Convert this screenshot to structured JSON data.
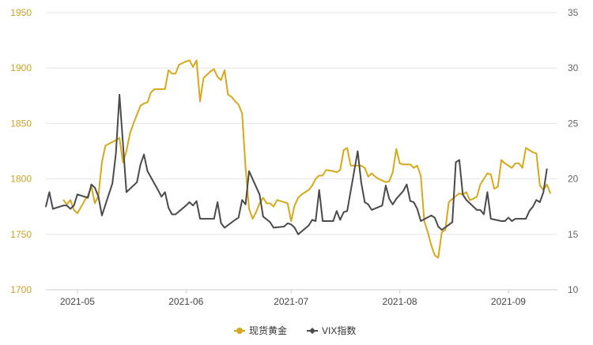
{
  "chart_data": {
    "type": "line",
    "x_type": "date",
    "x_range": [
      "2021-04-22",
      "2021-09-15"
    ],
    "x_ticks": [
      {
        "date": "2021-05-01",
        "label": "2021-05"
      },
      {
        "date": "2021-06-01",
        "label": "2021-06"
      },
      {
        "date": "2021-07-01",
        "label": "2021-07"
      },
      {
        "date": "2021-08-01",
        "label": "2021-08"
      },
      {
        "date": "2021-09-01",
        "label": "2021-09"
      }
    ],
    "y_left": {
      "min": 1700,
      "max": 1950,
      "ticks": [
        "1700",
        "1750",
        "1800",
        "1850",
        "1900",
        "1950"
      ]
    },
    "y_right": {
      "min": 10,
      "max": 35,
      "ticks": [
        "10",
        "15",
        "20",
        "25",
        "30",
        "35"
      ]
    },
    "grid": true,
    "legend_position": "bottom",
    "series": [
      {
        "name": "现货黄金",
        "axis": "left",
        "color": "#d4a91c",
        "marker": "circle",
        "points": [
          [
            "2021-04-27",
            1781
          ],
          [
            "2021-04-28",
            1777
          ],
          [
            "2021-04-29",
            1781
          ],
          [
            "2021-04-30",
            1772
          ],
          [
            "2021-05-01",
            1769
          ],
          [
            "2021-05-03",
            1780
          ],
          [
            "2021-05-04",
            1785
          ],
          [
            "2021-05-05",
            1793
          ],
          [
            "2021-05-06",
            1778
          ],
          [
            "2021-05-07",
            1785
          ],
          [
            "2021-05-08",
            1815
          ],
          [
            "2021-05-09",
            1830
          ],
          [
            "2021-05-12",
            1835
          ],
          [
            "2021-05-13",
            1837
          ],
          [
            "2021-05-14",
            1815
          ],
          [
            "2021-05-15",
            1825
          ],
          [
            "2021-05-16",
            1841
          ],
          [
            "2021-05-17",
            1850
          ],
          [
            "2021-05-19",
            1866
          ],
          [
            "2021-05-20",
            1868
          ],
          [
            "2021-05-21",
            1869
          ],
          [
            "2021-05-22",
            1878
          ],
          [
            "2021-05-23",
            1881
          ],
          [
            "2021-05-24",
            1881
          ],
          [
            "2021-05-26",
            1881
          ],
          [
            "2021-05-27",
            1898
          ],
          [
            "2021-05-28",
            1895
          ],
          [
            "2021-05-29",
            1895
          ],
          [
            "2021-05-30",
            1903
          ],
          [
            "2021-06-01",
            1906
          ],
          [
            "2021-06-02",
            1907
          ],
          [
            "2021-06-03",
            1901
          ],
          [
            "2021-06-04",
            1907
          ],
          [
            "2021-06-05",
            1870
          ],
          [
            "2021-06-06",
            1891
          ],
          [
            "2021-06-07",
            1894
          ],
          [
            "2021-06-08",
            1897
          ],
          [
            "2021-06-09",
            1899
          ],
          [
            "2021-06-10",
            1892
          ],
          [
            "2021-06-11",
            1889
          ],
          [
            "2021-06-12",
            1898
          ],
          [
            "2021-06-13",
            1876
          ],
          [
            "2021-06-14",
            1874
          ],
          [
            "2021-06-15",
            1870
          ],
          [
            "2021-06-16",
            1867
          ],
          [
            "2021-06-17",
            1859
          ],
          [
            "2021-06-18",
            1810
          ],
          [
            "2021-06-19",
            1773
          ],
          [
            "2021-06-20",
            1764
          ],
          [
            "2021-06-21",
            1770
          ],
          [
            "2021-06-22",
            1778
          ],
          [
            "2021-06-23",
            1783
          ],
          [
            "2021-06-24",
            1778
          ],
          [
            "2021-06-25",
            1778
          ],
          [
            "2021-06-26",
            1775
          ],
          [
            "2021-06-27",
            1781
          ],
          [
            "2021-06-29",
            1779
          ],
          [
            "2021-06-30",
            1778
          ],
          [
            "2021-07-01",
            1762
          ],
          [
            "2021-07-02",
            1776
          ],
          [
            "2021-07-03",
            1783
          ],
          [
            "2021-07-04",
            1786
          ],
          [
            "2021-07-06",
            1790
          ],
          [
            "2021-07-07",
            1794
          ],
          [
            "2021-07-08",
            1800
          ],
          [
            "2021-07-09",
            1803
          ],
          [
            "2021-07-10",
            1803
          ],
          [
            "2021-07-11",
            1808
          ],
          [
            "2021-07-13",
            1807
          ],
          [
            "2021-07-14",
            1806
          ],
          [
            "2021-07-15",
            1808
          ],
          [
            "2021-07-16",
            1826
          ],
          [
            "2021-07-17",
            1828
          ],
          [
            "2021-07-18",
            1812
          ],
          [
            "2021-07-20",
            1812
          ],
          [
            "2021-07-21",
            1812
          ],
          [
            "2021-07-22",
            1810
          ],
          [
            "2021-07-23",
            1802
          ],
          [
            "2021-07-24",
            1805
          ],
          [
            "2021-07-25",
            1802
          ],
          [
            "2021-07-26",
            1800
          ],
          [
            "2021-07-28",
            1797
          ],
          [
            "2021-07-29",
            1798
          ],
          [
            "2021-07-30",
            1806
          ],
          [
            "2021-07-31",
            1827
          ],
          [
            "2021-08-01",
            1814
          ],
          [
            "2021-08-02",
            1813
          ],
          [
            "2021-08-04",
            1813
          ],
          [
            "2021-08-05",
            1810
          ],
          [
            "2021-08-06",
            1812
          ],
          [
            "2021-08-07",
            1803
          ],
          [
            "2021-08-08",
            1762
          ],
          [
            "2021-08-09",
            1752
          ],
          [
            "2021-08-10",
            1740
          ],
          [
            "2021-08-11",
            1731
          ],
          [
            "2021-08-12",
            1729
          ],
          [
            "2021-08-13",
            1752
          ],
          [
            "2021-08-14",
            1754
          ],
          [
            "2021-08-15",
            1779
          ],
          [
            "2021-08-16",
            1782
          ],
          [
            "2021-08-18",
            1787
          ],
          [
            "2021-08-19",
            1786
          ],
          [
            "2021-08-20",
            1788
          ],
          [
            "2021-08-21",
            1781
          ],
          [
            "2021-08-22",
            1782
          ],
          [
            "2021-08-23",
            1784
          ],
          [
            "2021-08-24",
            1795
          ],
          [
            "2021-08-25",
            1800
          ],
          [
            "2021-08-26",
            1805
          ],
          [
            "2021-08-27",
            1804
          ],
          [
            "2021-08-28",
            1791
          ],
          [
            "2021-08-29",
            1793
          ],
          [
            "2021-08-30",
            1817
          ],
          [
            "2021-08-31",
            1814
          ],
          [
            "2021-09-02",
            1810
          ],
          [
            "2021-09-03",
            1814
          ],
          [
            "2021-09-04",
            1814
          ],
          [
            "2021-09-05",
            1810
          ],
          [
            "2021-09-06",
            1828
          ],
          [
            "2021-09-07",
            1826
          ],
          [
            "2021-09-08",
            1824
          ],
          [
            "2021-09-09",
            1823
          ],
          [
            "2021-09-10",
            1794
          ],
          [
            "2021-09-11",
            1790
          ],
          [
            "2021-09-12",
            1795
          ],
          [
            "2021-09-13",
            1787
          ]
        ]
      },
      {
        "name": "VIX指数",
        "axis": "right",
        "color": "#4a4a4a",
        "marker": "diamond",
        "points": [
          [
            "2021-04-22",
            17.5
          ],
          [
            "2021-04-23",
            18.8
          ],
          [
            "2021-04-24",
            17.3
          ],
          [
            "2021-04-27",
            17.6
          ],
          [
            "2021-04-28",
            17.6
          ],
          [
            "2021-04-29",
            17.3
          ],
          [
            "2021-04-30",
            17.6
          ],
          [
            "2021-05-01",
            18.6
          ],
          [
            "2021-05-03",
            18.4
          ],
          [
            "2021-05-04",
            18.3
          ],
          [
            "2021-05-05",
            19.5
          ],
          [
            "2021-05-06",
            19.2
          ],
          [
            "2021-05-07",
            18.4
          ],
          [
            "2021-05-08",
            16.7
          ],
          [
            "2021-05-11",
            19.6
          ],
          [
            "2021-05-12",
            22.3
          ],
          [
            "2021-05-13",
            27.6
          ],
          [
            "2021-05-14",
            23.2
          ],
          [
            "2021-05-15",
            18.8
          ],
          [
            "2021-05-18",
            19.7
          ],
          [
            "2021-05-19",
            21.3
          ],
          [
            "2021-05-20",
            22.2
          ],
          [
            "2021-05-21",
            20.7
          ],
          [
            "2021-05-24",
            19.0
          ],
          [
            "2021-05-25",
            18.4
          ],
          [
            "2021-05-26",
            18.8
          ],
          [
            "2021-05-27",
            17.4
          ],
          [
            "2021-05-28",
            16.8
          ],
          [
            "2021-05-29",
            16.8
          ],
          [
            "2021-06-01",
            17.6
          ],
          [
            "2021-06-02",
            17.9
          ],
          [
            "2021-06-03",
            17.6
          ],
          [
            "2021-06-04",
            18.0
          ],
          [
            "2021-06-05",
            16.4
          ],
          [
            "2021-06-08",
            16.4
          ],
          [
            "2021-06-09",
            16.4
          ],
          [
            "2021-06-10",
            17.9
          ],
          [
            "2021-06-11",
            16.0
          ],
          [
            "2021-06-12",
            15.6
          ],
          [
            "2021-06-15",
            16.3
          ],
          [
            "2021-06-16",
            16.5
          ],
          [
            "2021-06-17",
            18.1
          ],
          [
            "2021-06-18",
            17.7
          ],
          [
            "2021-06-19",
            20.7
          ],
          [
            "2021-06-22",
            18.6
          ],
          [
            "2021-06-23",
            16.6
          ],
          [
            "2021-06-25",
            16.1
          ],
          [
            "2021-06-26",
            15.6
          ],
          [
            "2021-06-29",
            15.7
          ],
          [
            "2021-06-30",
            16.0
          ],
          [
            "2021-07-01",
            15.9
          ],
          [
            "2021-07-02",
            15.6
          ],
          [
            "2021-07-03",
            15.0
          ],
          [
            "2021-07-06",
            15.8
          ],
          [
            "2021-07-07",
            16.3
          ],
          [
            "2021-07-08",
            16.2
          ],
          [
            "2021-07-09",
            19.0
          ],
          [
            "2021-07-10",
            16.2
          ],
          [
            "2021-07-13",
            16.2
          ],
          [
            "2021-07-14",
            17.1
          ],
          [
            "2021-07-15",
            16.3
          ],
          [
            "2021-07-16",
            17.0
          ],
          [
            "2021-07-17",
            17.1
          ],
          [
            "2021-07-20",
            22.5
          ],
          [
            "2021-07-21",
            19.7
          ],
          [
            "2021-07-22",
            17.9
          ],
          [
            "2021-07-23",
            17.7
          ],
          [
            "2021-07-24",
            17.2
          ],
          [
            "2021-07-27",
            17.6
          ],
          [
            "2021-07-28",
            19.4
          ],
          [
            "2021-07-29",
            18.2
          ],
          [
            "2021-07-30",
            17.7
          ],
          [
            "2021-07-31",
            18.2
          ],
          [
            "2021-08-02",
            18.9
          ],
          [
            "2021-08-03",
            19.5
          ],
          [
            "2021-08-04",
            18.0
          ],
          [
            "2021-08-05",
            17.9
          ],
          [
            "2021-08-06",
            17.3
          ],
          [
            "2021-08-07",
            16.2
          ],
          [
            "2021-08-10",
            16.7
          ],
          [
            "2021-08-11",
            16.5
          ],
          [
            "2021-08-12",
            15.7
          ],
          [
            "2021-08-13",
            15.4
          ],
          [
            "2021-08-16",
            16.1
          ],
          [
            "2021-08-17",
            21.5
          ],
          [
            "2021-08-18",
            21.7
          ],
          [
            "2021-08-19",
            18.6
          ],
          [
            "2021-08-20",
            18.1
          ],
          [
            "2021-08-23",
            17.2
          ],
          [
            "2021-08-24",
            17.2
          ],
          [
            "2021-08-25",
            16.8
          ],
          [
            "2021-08-26",
            18.8
          ],
          [
            "2021-08-27",
            16.4
          ],
          [
            "2021-08-30",
            16.2
          ],
          [
            "2021-08-31",
            16.2
          ],
          [
            "2021-09-01",
            16.5
          ],
          [
            "2021-09-02",
            16.2
          ],
          [
            "2021-09-03",
            16.4
          ],
          [
            "2021-09-06",
            16.4
          ],
          [
            "2021-09-07",
            17.1
          ],
          [
            "2021-09-08",
            17.5
          ],
          [
            "2021-09-09",
            18.1
          ],
          [
            "2021-09-10",
            17.9
          ],
          [
            "2021-09-11",
            18.8
          ],
          [
            "2021-09-12",
            20.9
          ]
        ]
      }
    ]
  }
}
